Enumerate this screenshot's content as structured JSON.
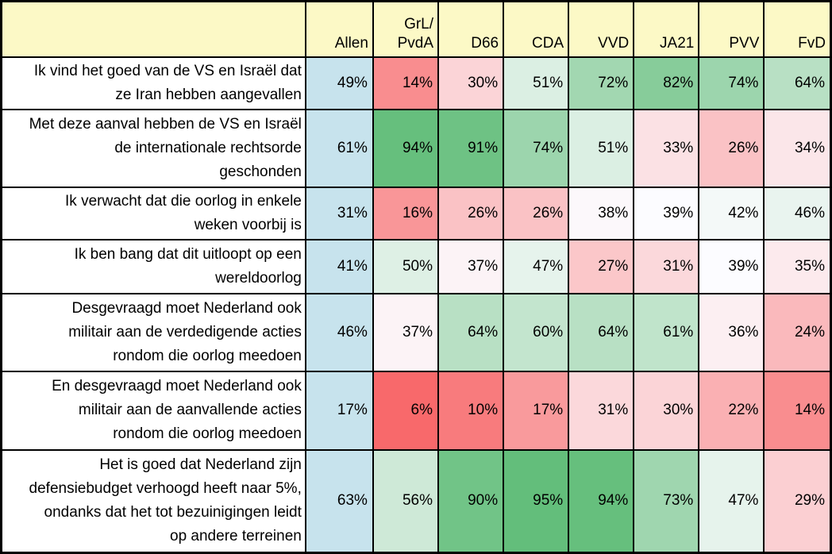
{
  "chart_data": {
    "type": "heatmap",
    "unit": "%",
    "columns": [
      {
        "id": "allen",
        "label": "Allen"
      },
      {
        "id": "grl-pvda",
        "label": "GrL/\nPvdA"
      },
      {
        "id": "d66",
        "label": "D66"
      },
      {
        "id": "cda",
        "label": "CDA"
      },
      {
        "id": "vvd",
        "label": "VVD"
      },
      {
        "id": "ja21",
        "label": "JA21"
      },
      {
        "id": "pvv",
        "label": "PVV"
      },
      {
        "id": "fvd",
        "label": "FvD"
      }
    ],
    "rows": [
      {
        "label": "Ik vind het goed van de VS en Israël dat\nze Iran hebben aangevallen",
        "values": [
          49,
          14,
          30,
          51,
          72,
          82,
          74,
          64
        ]
      },
      {
        "label": "Met deze aanval hebben de VS en Israël\nde internationale rechtsorde\ngeschonden",
        "values": [
          61,
          94,
          91,
          74,
          51,
          33,
          26,
          34
        ]
      },
      {
        "label": "Ik verwacht dat die oorlog in enkele\nweken voorbij is",
        "values": [
          31,
          16,
          26,
          26,
          38,
          39,
          42,
          46
        ]
      },
      {
        "label": "Ik ben bang dat dit uitloopt op een\nwereldoorlog",
        "values": [
          41,
          50,
          37,
          47,
          27,
          31,
          39,
          35
        ]
      },
      {
        "label": "Desgevraagd moet Nederland ook\nmilitair aan de verdedigende acties\nrondom die oorlog meedoen",
        "values": [
          46,
          37,
          64,
          60,
          64,
          61,
          36,
          24
        ]
      },
      {
        "label": "En desgevraagd moet Nederland ook\nmilitair aan de aanvallende acties\nrondom die oorlog meedoen",
        "values": [
          17,
          6,
          10,
          17,
          31,
          30,
          22,
          14
        ]
      },
      {
        "label": "Het is goed dat Nederland zijn\ndefensiebudget verhoogd heeft naar 5%,\nondanks dat het tot bezuinigingen leidt\nop andere terreinen",
        "values": [
          63,
          56,
          90,
          95,
          94,
          73,
          47,
          29
        ]
      }
    ],
    "color_scale": {
      "min": 6,
      "mid": 39,
      "max": 95,
      "min_color": "#F8696B",
      "mid_color": "#FCFCFF",
      "max_color": "#63BE7B"
    },
    "styles": {
      "header_bg": "#FCF9C6",
      "allen_bg": "#C7E3ED",
      "label_bg": "#FFFFFF",
      "border_color": "#000000",
      "text_color": "#000000"
    }
  }
}
